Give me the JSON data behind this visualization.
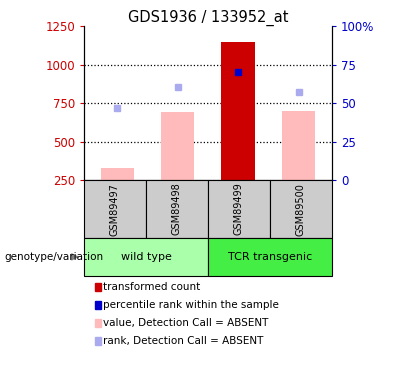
{
  "title": "GDS1936 / 133952_at",
  "samples": [
    "GSM89497",
    "GSM89498",
    "GSM89499",
    "GSM89500"
  ],
  "ylim_left": [
    250,
    1250
  ],
  "ylim_right": [
    0,
    100
  ],
  "yticks_left": [
    250,
    500,
    750,
    1000,
    1250
  ],
  "yticks_right": [
    0,
    25,
    50,
    75,
    100
  ],
  "ytick_right_labels": [
    "0",
    "25",
    "50",
    "75",
    "100%"
  ],
  "bar_values": [
    330,
    690,
    1150,
    700
  ],
  "bar_color_absent": "#ffbbbb",
  "bar_color_present": "#cc0000",
  "bar_is_absent": [
    true,
    true,
    false,
    true
  ],
  "rank_marker_values": [
    720,
    855,
    955,
    820
  ],
  "rank_marker_color_absent": "#aaaaee",
  "rank_marker_color_present": "#0000cc",
  "rank_marker_is_absent": [
    true,
    true,
    false,
    true
  ],
  "sample_box_color": "#cccccc",
  "wildtype_box_color": "#aaffaa",
  "tcr_box_color": "#44ee44",
  "legend_items": [
    {
      "color": "#cc0000",
      "label": "transformed count"
    },
    {
      "color": "#0000cc",
      "label": "percentile rank within the sample"
    },
    {
      "color": "#ffbbbb",
      "label": "value, Detection Call = ABSENT"
    },
    {
      "color": "#aaaaee",
      "label": "rank, Detection Call = ABSENT"
    }
  ],
  "left_axis_color": "#cc0000",
  "right_axis_color": "#0000cc",
  "grid_yticks": [
    500,
    750,
    1000
  ],
  "fig_width": 4.2,
  "fig_height": 3.75,
  "dpi": 100
}
